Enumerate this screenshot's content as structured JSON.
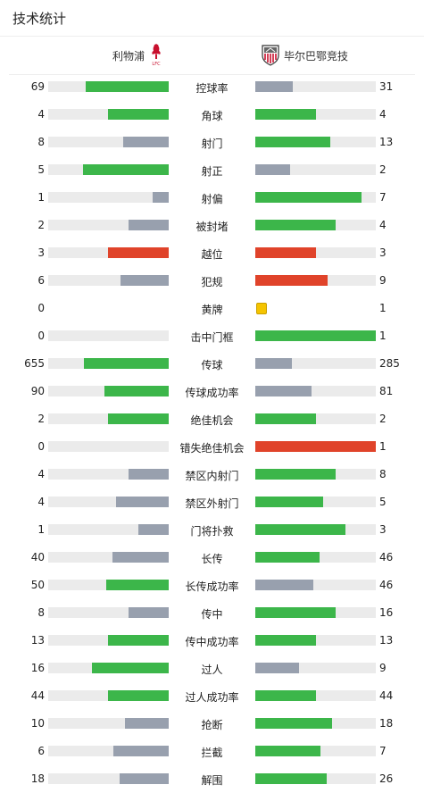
{
  "header": {
    "title": "技术统计"
  },
  "teams": {
    "home": {
      "name": "利物浦",
      "crest": "liverpool-crest-icon"
    },
    "away": {
      "name": "毕尔巴鄂竞技",
      "crest": "athletic-bilbao-crest-icon"
    }
  },
  "colors": {
    "green": "#3cb64a",
    "grey": "#98a0ae",
    "red": "#e0432a",
    "track": "#ebebeb",
    "yellow_card": "#f5c400",
    "liverpool_red": "#c8102e"
  },
  "stats": [
    {
      "label": "控球率",
      "home": "69",
      "away": "31",
      "home_frac": 0.69,
      "away_frac": 0.31,
      "home_color": "green",
      "away_color": "grey"
    },
    {
      "label": "角球",
      "home": "4",
      "away": "4",
      "home_frac": 0.5,
      "away_frac": 0.5,
      "home_color": "green",
      "away_color": "green"
    },
    {
      "label": "射门",
      "home": "8",
      "away": "13",
      "home_frac": 0.38,
      "away_frac": 0.62,
      "home_color": "grey",
      "away_color": "green"
    },
    {
      "label": "射正",
      "home": "5",
      "away": "2",
      "home_frac": 0.71,
      "away_frac": 0.29,
      "home_color": "green",
      "away_color": "grey"
    },
    {
      "label": "射偏",
      "home": "1",
      "away": "7",
      "home_frac": 0.13,
      "away_frac": 0.88,
      "home_color": "grey",
      "away_color": "green"
    },
    {
      "label": "被封堵",
      "home": "2",
      "away": "4",
      "home_frac": 0.33,
      "away_frac": 0.67,
      "home_color": "grey",
      "away_color": "green"
    },
    {
      "label": "越位",
      "home": "3",
      "away": "3",
      "home_frac": 0.5,
      "away_frac": 0.5,
      "home_color": "red",
      "away_color": "red"
    },
    {
      "label": "犯规",
      "home": "6",
      "away": "9",
      "home_frac": 0.4,
      "away_frac": 0.6,
      "home_color": "grey",
      "away_color": "red"
    },
    {
      "label": "黄牌",
      "home": "0",
      "away": "1",
      "home_frac": 0,
      "away_frac": 1,
      "home_color": "yellow_card",
      "away_color": "yellow_card",
      "card": true
    },
    {
      "label": "击中门框",
      "home": "0",
      "away": "1",
      "home_frac": 0,
      "away_frac": 1,
      "home_color": "grey",
      "away_color": "green"
    },
    {
      "label": "传球",
      "home": "655",
      "away": "285",
      "home_frac": 0.7,
      "away_frac": 0.3,
      "home_color": "green",
      "away_color": "grey"
    },
    {
      "label": "传球成功率",
      "home": "90",
      "away": "81",
      "home_frac": 0.53,
      "away_frac": 0.47,
      "home_color": "green",
      "away_color": "grey"
    },
    {
      "label": "绝佳机会",
      "home": "2",
      "away": "2",
      "home_frac": 0.5,
      "away_frac": 0.5,
      "home_color": "green",
      "away_color": "green"
    },
    {
      "label": "错失绝佳机会",
      "home": "0",
      "away": "1",
      "home_frac": 0,
      "away_frac": 1,
      "home_color": "grey",
      "away_color": "red"
    },
    {
      "label": "禁区内射门",
      "home": "4",
      "away": "8",
      "home_frac": 0.33,
      "away_frac": 0.67,
      "home_color": "grey",
      "away_color": "green"
    },
    {
      "label": "禁区外射门",
      "home": "4",
      "away": "5",
      "home_frac": 0.44,
      "away_frac": 0.56,
      "home_color": "grey",
      "away_color": "green"
    },
    {
      "label": "门将扑救",
      "home": "1",
      "away": "3",
      "home_frac": 0.25,
      "away_frac": 0.75,
      "home_color": "grey",
      "away_color": "green"
    },
    {
      "label": "长传",
      "home": "40",
      "away": "46",
      "home_frac": 0.47,
      "away_frac": 0.53,
      "home_color": "grey",
      "away_color": "green"
    },
    {
      "label": "长传成功率",
      "home": "50",
      "away": "46",
      "home_frac": 0.52,
      "away_frac": 0.48,
      "home_color": "green",
      "away_color": "grey"
    },
    {
      "label": "传中",
      "home": "8",
      "away": "16",
      "home_frac": 0.33,
      "away_frac": 0.67,
      "home_color": "grey",
      "away_color": "green"
    },
    {
      "label": "传中成功率",
      "home": "13",
      "away": "13",
      "home_frac": 0.5,
      "away_frac": 0.5,
      "home_color": "green",
      "away_color": "green"
    },
    {
      "label": "过人",
      "home": "16",
      "away": "9",
      "home_frac": 0.64,
      "away_frac": 0.36,
      "home_color": "green",
      "away_color": "grey"
    },
    {
      "label": "过人成功率",
      "home": "44",
      "away": "44",
      "home_frac": 0.5,
      "away_frac": 0.5,
      "home_color": "green",
      "away_color": "green"
    },
    {
      "label": "抢断",
      "home": "10",
      "away": "18",
      "home_frac": 0.36,
      "away_frac": 0.64,
      "home_color": "grey",
      "away_color": "green"
    },
    {
      "label": "拦截",
      "home": "6",
      "away": "7",
      "home_frac": 0.46,
      "away_frac": 0.54,
      "home_color": "grey",
      "away_color": "green"
    },
    {
      "label": "解围",
      "home": "18",
      "away": "26",
      "home_frac": 0.41,
      "away_frac": 0.59,
      "home_color": "grey",
      "away_color": "green"
    }
  ]
}
